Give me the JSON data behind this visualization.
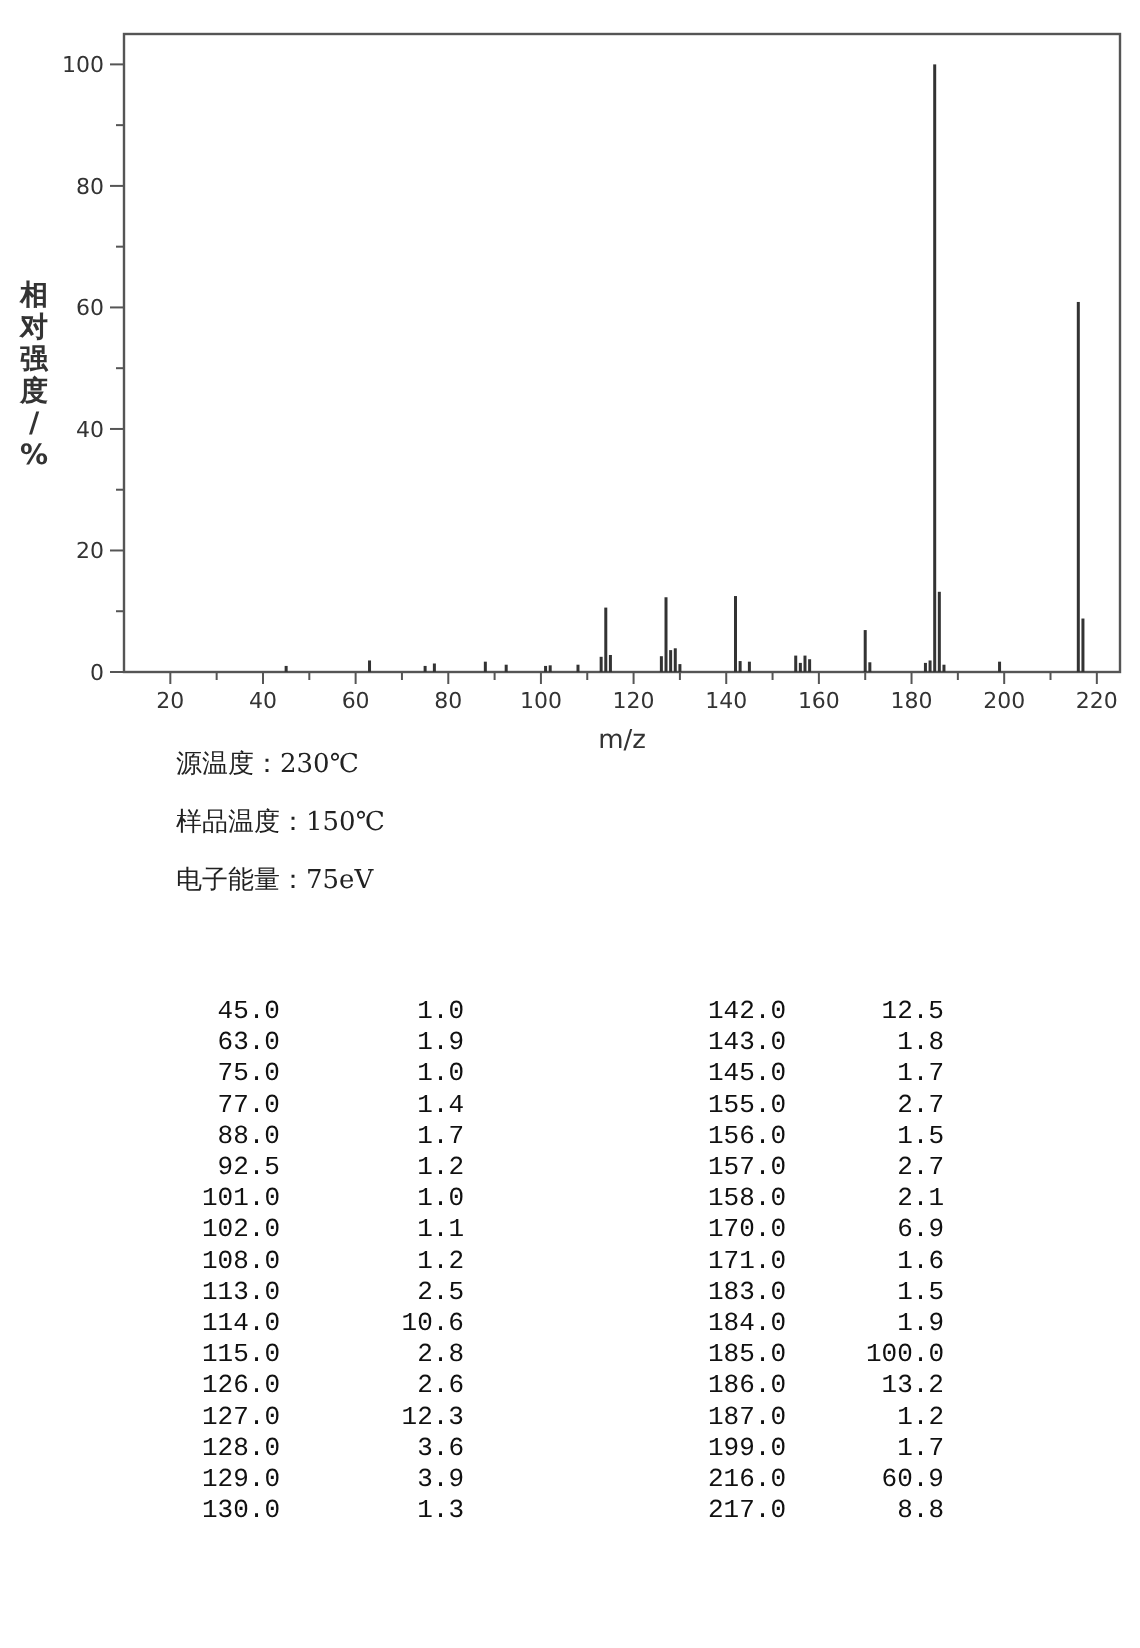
{
  "chart_data": [
    {
      "type": "bar",
      "xlabel": "m/z",
      "ylabel": "相对强度/%",
      "annotations": [
        "源温度：230℃",
        "样品温度：150℃",
        "电子能量：75eV"
      ],
      "x": [
        45,
        63,
        75,
        77,
        88,
        92.5,
        101,
        102,
        108,
        113,
        114,
        115,
        126,
        127,
        128,
        129,
        130,
        142,
        143,
        145,
        155,
        156,
        157,
        158,
        170,
        171,
        183,
        184,
        185,
        186,
        187,
        199,
        216,
        217
      ],
      "values": [
        1.0,
        1.9,
        1.0,
        1.4,
        1.7,
        1.2,
        1.0,
        1.1,
        1.2,
        2.5,
        10.6,
        2.8,
        2.6,
        12.3,
        3.6,
        3.9,
        1.3,
        12.5,
        1.8,
        1.7,
        2.7,
        1.5,
        2.7,
        2.1,
        6.9,
        1.6,
        1.5,
        1.9,
        100.0,
        13.2,
        1.2,
        1.7,
        60.9,
        8.8
      ],
      "color": "#333333",
      "xlim": [
        10,
        225
      ],
      "xticks": [
        20,
        40,
        60,
        80,
        100,
        120,
        140,
        160,
        180,
        200,
        220,
        {
          "value": 30,
          "label": null
        },
        {
          "value": 50,
          "label": null
        },
        {
          "value": 70,
          "label": null
        },
        {
          "value": 90,
          "label": null
        },
        {
          "value": 110,
          "label": null
        },
        {
          "value": 130,
          "label": null
        },
        {
          "value": 150,
          "label": null
        },
        {
          "value": 170,
          "label": null
        },
        {
          "value": 190,
          "label": null
        },
        {
          "value": 210,
          "label": null
        }
      ],
      "ylim": [
        0,
        105
      ],
      "yticks": [
        0,
        20,
        40,
        60,
        80,
        100,
        {
          "value": 10,
          "label": null
        },
        {
          "value": 30,
          "label": null
        },
        {
          "value": 50,
          "label": null
        },
        {
          "value": 70,
          "label": null
        },
        {
          "value": 90,
          "label": null
        }
      ],
      "grid": false
    },
    {
      "type": "other",
      "categories": [
        "45.0",
        "63.0",
        "75.0",
        "77.0",
        "88.0",
        "92.5",
        "101.0",
        "102.0",
        "108.0",
        "113.0",
        "114.0",
        "115.0",
        "126.0",
        "127.0",
        "128.0",
        "129.0",
        "130.0",
        "142.0",
        "143.0",
        "145.0",
        "155.0",
        "156.0",
        "157.0",
        "158.0",
        "170.0",
        "171.0",
        "183.0",
        "184.0",
        "185.0",
        "186.0",
        "187.0",
        "199.0",
        "216.0",
        "217.0"
      ],
      "values": [
        1.0,
        1.9,
        1.0,
        1.4,
        1.7,
        1.2,
        1.0,
        1.1,
        1.2,
        2.5,
        10.6,
        2.8,
        2.6,
        12.3,
        3.6,
        3.9,
        1.3,
        12.5,
        1.8,
        1.7,
        2.7,
        1.5,
        2.7,
        2.1,
        6.9,
        1.6,
        1.5,
        1.9,
        100.0,
        13.2,
        1.2,
        1.7,
        60.9,
        8.8
      ],
      "value_labels": [
        "1.0",
        "1.9",
        "1.0",
        "1.4",
        "1.7",
        "1.2",
        "1.0",
        "1.1",
        "1.2",
        "2.5",
        "10.6",
        "2.8",
        "2.6",
        "12.3",
        "3.6",
        "3.9",
        "1.3",
        "12.5",
        "1.8",
        "1.7",
        "2.7",
        "1.5",
        "2.7",
        "2.1",
        "6.9",
        "1.6",
        "1.5",
        "1.9",
        "100.0",
        "13.2",
        "1.2",
        "1.7",
        "60.9",
        "8.8"
      ]
    }
  ]
}
